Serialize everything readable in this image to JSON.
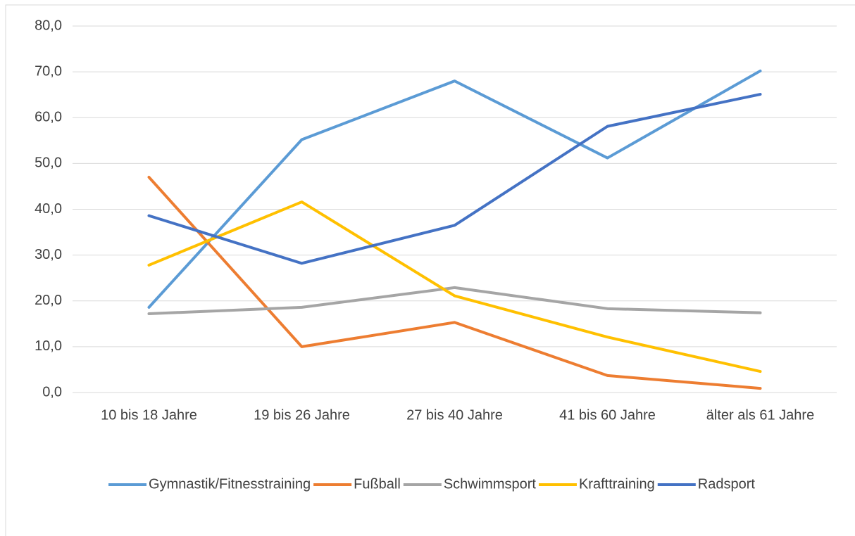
{
  "chart_data": {
    "type": "line",
    "categories": [
      "10 bis 18 Jahre",
      "19 bis 26 Jahre",
      "27 bis 40 Jahre",
      "41 bis 60 Jahre",
      "älter als 61 Jahre"
    ],
    "series": [
      {
        "name": "Gymnastik/Fitnesstraining",
        "color": "#5b9bd5",
        "values": [
          18.6,
          55.2,
          68.0,
          51.2,
          70.2
        ]
      },
      {
        "name": "Fußball",
        "color": "#ed7d31",
        "values": [
          47.0,
          10.0,
          15.3,
          3.7,
          0.9
        ]
      },
      {
        "name": "Schwimmsport",
        "color": "#a5a5a5",
        "values": [
          17.2,
          18.6,
          22.9,
          18.3,
          17.4
        ]
      },
      {
        "name": "Krafttraining",
        "color": "#ffc000",
        "values": [
          27.8,
          41.6,
          21.1,
          12.1,
          4.6
        ]
      },
      {
        "name": "Radsport",
        "color": "#4472c4",
        "values": [
          38.6,
          28.2,
          36.5,
          58.1,
          65.1
        ]
      }
    ],
    "ylim": [
      0,
      80
    ],
    "yticks": [
      {
        "value": 0,
        "label": "0,0"
      },
      {
        "value": 10,
        "label": "10,0"
      },
      {
        "value": 20,
        "label": "20,0"
      },
      {
        "value": 30,
        "label": "30,0"
      },
      {
        "value": 40,
        "label": "40,0"
      },
      {
        "value": 50,
        "label": "50,0"
      },
      {
        "value": 60,
        "label": "60,0"
      },
      {
        "value": 70,
        "label": "70,0"
      },
      {
        "value": 80,
        "label": "80,0"
      }
    ],
    "grid": true,
    "legend": "bottom"
  }
}
